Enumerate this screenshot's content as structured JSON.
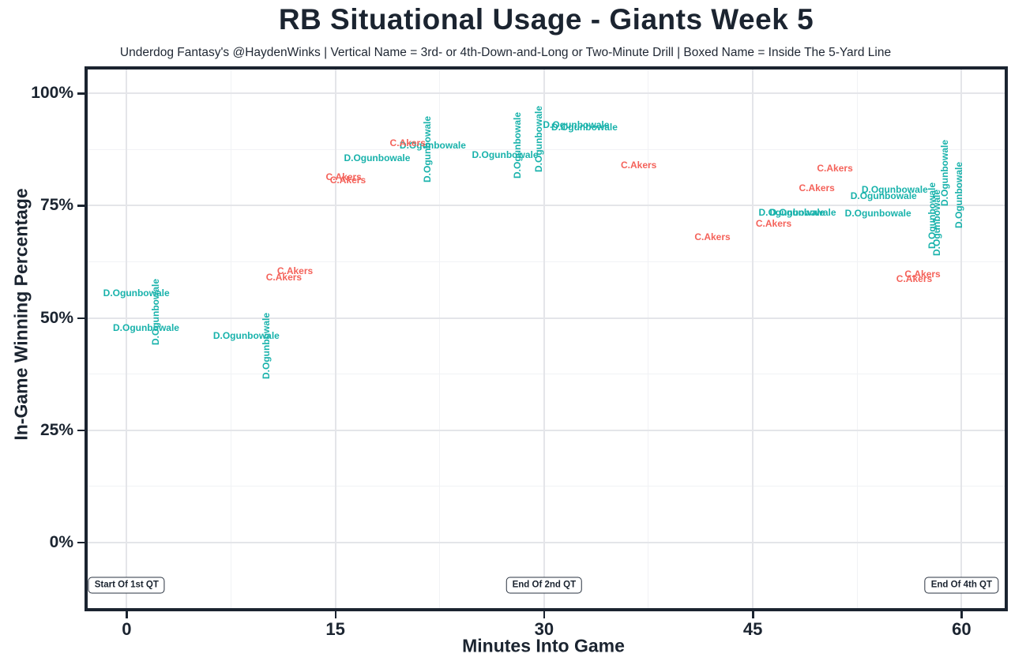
{
  "header": {
    "title": "RB Situational Usage - Giants Week 5",
    "subtitle": "Underdog Fantasy's @HaydenWinks | Vertical Name = 3rd- or 4th-Down-and-Long or Two-Minute Drill | Boxed Name = Inside The 5-Yard Line"
  },
  "colors": {
    "ogunbowale_teal": "#18b2ab",
    "akers_red": "#f4625a",
    "axis_dark": "#1b2430",
    "grid_major": "#e4e5e9",
    "grid_minor": "#f1f2f5",
    "background": "#ffffff"
  },
  "chart_data": {
    "type": "scatter",
    "title": "RB Situational Usage - Giants Week 5",
    "subtitle": "Underdog Fantasy's @HaydenWinks | Vertical Name = 3rd- or 4th-Down-and-Long or Two-Minute Drill | Boxed Name = Inside The 5-Yard Line",
    "xlabel": "Minutes Into Game",
    "ylabel": "In-Game Winning Percentage",
    "xlim": [
      -2.8,
      63.1
    ],
    "ylim": [
      -14.6,
      105.3
    ],
    "x_ticks": [
      0,
      15,
      30,
      45,
      60
    ],
    "x_minor_ticks": [
      7.5,
      22.5,
      37.5,
      52.5
    ],
    "y_ticks": [
      0,
      25,
      50,
      75,
      100
    ],
    "y_tick_labels": [
      "0%",
      "25%",
      "50%",
      "75%",
      "100%"
    ],
    "grid": "major and minor gridlines, light gray on white, full dark frame",
    "legend": "none (player names drawn as colored text at data points; orient v = vertical/rotated name)",
    "series": [
      {
        "name": "D.Ogunbowale",
        "color": "#18b2ab",
        "points": [
          {
            "x": 0.7,
            "y": 55.5,
            "orient": "h"
          },
          {
            "x": 1.4,
            "y": 47.8,
            "orient": "h"
          },
          {
            "x": 2.1,
            "y": 51.3,
            "orient": "v"
          },
          {
            "x": 8.6,
            "y": 46.0,
            "orient": "h"
          },
          {
            "x": 10.0,
            "y": 43.8,
            "orient": "v"
          },
          {
            "x": 18.0,
            "y": 85.6,
            "orient": "h"
          },
          {
            "x": 21.6,
            "y": 87.5,
            "orient": "v"
          },
          {
            "x": 22.0,
            "y": 88.5,
            "orient": "h"
          },
          {
            "x": 27.2,
            "y": 86.3,
            "orient": "h"
          },
          {
            "x": 28.1,
            "y": 88.4,
            "orient": "v"
          },
          {
            "x": 29.6,
            "y": 89.8,
            "orient": "v"
          },
          {
            "x": 32.3,
            "y": 93.0,
            "orient": "h"
          },
          {
            "x": 32.9,
            "y": 92.5,
            "orient": "h"
          },
          {
            "x": 47.8,
            "y": 73.5,
            "orient": "h"
          },
          {
            "x": 48.6,
            "y": 73.5,
            "orient": "h"
          },
          {
            "x": 54.0,
            "y": 73.3,
            "orient": "h"
          },
          {
            "x": 54.4,
            "y": 77.2,
            "orient": "h"
          },
          {
            "x": 55.2,
            "y": 78.6,
            "orient": "h"
          },
          {
            "x": 57.9,
            "y": 72.8,
            "orient": "v"
          },
          {
            "x": 58.2,
            "y": 71.2,
            "orient": "v"
          },
          {
            "x": 58.8,
            "y": 82.2,
            "orient": "v"
          },
          {
            "x": 59.8,
            "y": 77.3,
            "orient": "v"
          }
        ]
      },
      {
        "name": "C.Akers",
        "color": "#f4625a",
        "points": [
          {
            "x": 11.3,
            "y": 59.0,
            "orient": "h"
          },
          {
            "x": 12.1,
            "y": 60.5,
            "orient": "h"
          },
          {
            "x": 15.6,
            "y": 81.4,
            "orient": "h"
          },
          {
            "x": 15.9,
            "y": 80.7,
            "orient": "h"
          },
          {
            "x": 20.2,
            "y": 88.9,
            "orient": "h"
          },
          {
            "x": 36.8,
            "y": 84.0,
            "orient": "h"
          },
          {
            "x": 42.1,
            "y": 68.0,
            "orient": "h"
          },
          {
            "x": 46.5,
            "y": 71.0,
            "orient": "h"
          },
          {
            "x": 49.6,
            "y": 78.9,
            "orient": "h"
          },
          {
            "x": 50.9,
            "y": 83.3,
            "orient": "h"
          },
          {
            "x": 56.6,
            "y": 58.7,
            "orient": "h"
          },
          {
            "x": 57.2,
            "y": 59.8,
            "orient": "h"
          }
        ]
      }
    ],
    "annotations": [
      {
        "label": "Start Of 1st QT",
        "x": 0,
        "y": -9.5
      },
      {
        "label": "End Of 2nd QT",
        "x": 30,
        "y": -9.5
      },
      {
        "label": "End Of 4th QT",
        "x": 60,
        "y": -9.5
      }
    ]
  }
}
